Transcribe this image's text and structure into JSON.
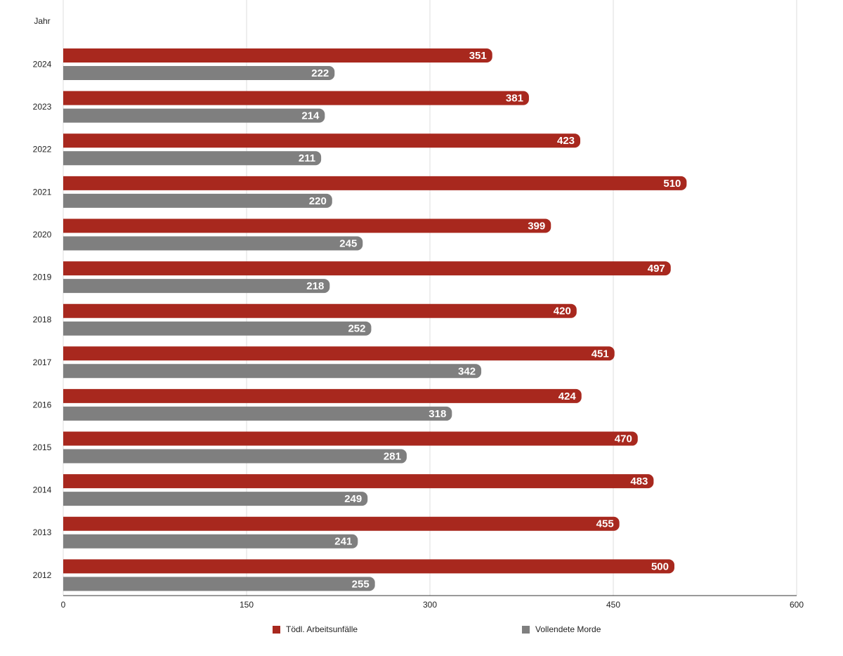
{
  "chart_data": {
    "type": "bar",
    "orientation": "horizontal",
    "y_axis_label": "Jahr",
    "categories": [
      "2024",
      "2023",
      "2022",
      "2021",
      "2020",
      "2019",
      "2018",
      "2017",
      "2016",
      "2015",
      "2014",
      "2013",
      "2012"
    ],
    "series": [
      {
        "name": "Tödl. Arbeitsunfälle",
        "color": "#a8281e",
        "values": [
          351,
          381,
          423,
          510,
          399,
          497,
          420,
          451,
          424,
          470,
          483,
          455,
          500
        ]
      },
      {
        "name": "Vollendete Morde",
        "color": "#7f7f7f",
        "values": [
          222,
          214,
          211,
          220,
          245,
          218,
          252,
          342,
          318,
          281,
          249,
          241,
          255
        ]
      }
    ],
    "xlim": [
      0,
      600
    ],
    "xticks": [
      0,
      150,
      300,
      450,
      600
    ],
    "grid": true,
    "legend": "bottom",
    "data_labels": true
  }
}
